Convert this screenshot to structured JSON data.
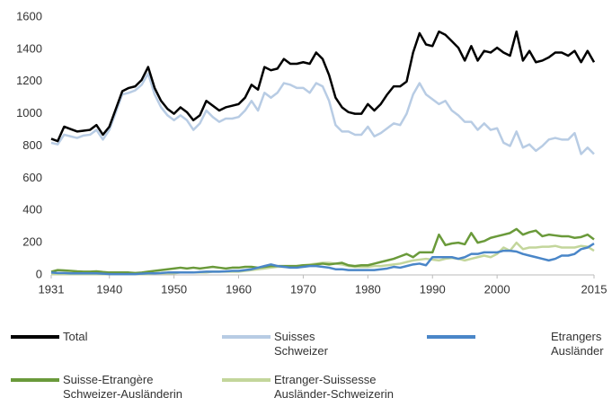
{
  "chart_data": {
    "type": "line",
    "xlim": [
      1931,
      2015
    ],
    "xticks": [
      1931,
      1940,
      1950,
      1960,
      1970,
      1980,
      1990,
      2000,
      2015
    ],
    "ylim": [
      0,
      1600
    ],
    "yticks": [
      0,
      200,
      400,
      600,
      800,
      1000,
      1200,
      1400,
      1600
    ],
    "grid": false,
    "x": [
      1931,
      1932,
      1933,
      1934,
      1935,
      1936,
      1937,
      1938,
      1939,
      1940,
      1941,
      1942,
      1943,
      1944,
      1945,
      1946,
      1947,
      1948,
      1949,
      1950,
      1951,
      1952,
      1953,
      1954,
      1955,
      1956,
      1957,
      1958,
      1959,
      1960,
      1961,
      1962,
      1963,
      1964,
      1965,
      1966,
      1967,
      1968,
      1969,
      1970,
      1971,
      1972,
      1973,
      1974,
      1975,
      1976,
      1977,
      1978,
      1979,
      1980,
      1981,
      1982,
      1983,
      1984,
      1985,
      1986,
      1987,
      1988,
      1989,
      1990,
      1991,
      1992,
      1993,
      1994,
      1995,
      1996,
      1997,
      1998,
      1999,
      2000,
      2001,
      2002,
      2003,
      2004,
      2005,
      2006,
      2007,
      2008,
      2009,
      2010,
      2011,
      2012,
      2013,
      2014,
      2015
    ],
    "series": [
      {
        "name": "Total",
        "color": "#000000",
        "values": [
          845,
          830,
          920,
          905,
          890,
          895,
          900,
          930,
          870,
          920,
          1030,
          1140,
          1160,
          1170,
          1210,
          1290,
          1160,
          1080,
          1030,
          1000,
          1040,
          1010,
          960,
          990,
          1080,
          1050,
          1020,
          1040,
          1050,
          1060,
          1100,
          1180,
          1150,
          1290,
          1270,
          1280,
          1340,
          1310,
          1310,
          1320,
          1310,
          1380,
          1340,
          1240,
          1100,
          1040,
          1010,
          1000,
          1000,
          1060,
          1020,
          1060,
          1120,
          1170,
          1170,
          1200,
          1380,
          1500,
          1430,
          1420,
          1510,
          1490,
          1450,
          1410,
          1330,
          1420,
          1330,
          1390,
          1380,
          1410,
          1380,
          1360,
          1510,
          1330,
          1390,
          1320,
          1330,
          1350,
          1380,
          1380,
          1360,
          1390,
          1320,
          1390,
          1320
        ]
      },
      {
        "name": "Suisses\nSchweizer",
        "color": "#b8cce4",
        "values": [
          820,
          810,
          870,
          860,
          850,
          865,
          870,
          900,
          840,
          900,
          1010,
          1120,
          1130,
          1145,
          1180,
          1250,
          1120,
          1040,
          990,
          960,
          990,
          960,
          900,
          940,
          1020,
          980,
          950,
          970,
          970,
          980,
          1020,
          1080,
          1020,
          1130,
          1100,
          1130,
          1190,
          1180,
          1160,
          1160,
          1130,
          1190,
          1170,
          1080,
          930,
          890,
          890,
          870,
          870,
          920,
          860,
          880,
          910,
          940,
          930,
          1000,
          1120,
          1190,
          1120,
          1090,
          1060,
          1080,
          1020,
          990,
          950,
          950,
          900,
          940,
          900,
          910,
          820,
          800,
          890,
          790,
          810,
          770,
          800,
          840,
          850,
          840,
          840,
          880,
          750,
          790,
          750
        ]
      },
      {
        "name": "Etrangers\nAusländer",
        "color": "#4a86c8",
        "values": [
          15,
          12,
          12,
          10,
          10,
          10,
          10,
          10,
          8,
          5,
          5,
          5,
          5,
          5,
          8,
          10,
          10,
          12,
          15,
          15,
          15,
          15,
          15,
          18,
          20,
          20,
          20,
          22,
          25,
          25,
          30,
          35,
          45,
          55,
          65,
          55,
          50,
          45,
          45,
          50,
          55,
          55,
          50,
          45,
          35,
          35,
          30,
          30,
          30,
          30,
          30,
          35,
          40,
          50,
          45,
          55,
          65,
          70,
          60,
          110,
          110,
          110,
          110,
          100,
          110,
          130,
          130,
          140,
          140,
          140,
          150,
          150,
          145,
          130,
          120,
          110,
          100,
          90,
          100,
          120,
          120,
          130,
          160,
          170,
          195
        ]
      },
      {
        "name": "Suisse-Etrangère\nSchweizer-Ausländerin",
        "color": "#6a9a3a",
        "values": [
          20,
          30,
          28,
          25,
          22,
          20,
          20,
          22,
          18,
          15,
          15,
          15,
          15,
          12,
          15,
          20,
          25,
          30,
          35,
          40,
          45,
          40,
          45,
          40,
          45,
          50,
          45,
          40,
          45,
          45,
          50,
          50,
          45,
          50,
          55,
          55,
          55,
          55,
          55,
          60,
          60,
          65,
          70,
          65,
          70,
          75,
          60,
          55,
          60,
          60,
          70,
          80,
          90,
          100,
          115,
          130,
          110,
          140,
          140,
          140,
          250,
          185,
          195,
          200,
          190,
          260,
          200,
          210,
          230,
          240,
          250,
          260,
          285,
          250,
          265,
          275,
          240,
          250,
          245,
          240,
          240,
          230,
          235,
          250,
          220
        ]
      },
      {
        "name": "Etranger-Suissesse\nAusländer-Schweizerin",
        "color": "#c3d69b",
        "values": [
          5,
          5,
          5,
          5,
          5,
          5,
          5,
          5,
          5,
          5,
          5,
          5,
          5,
          5,
          5,
          5,
          10,
          10,
          10,
          10,
          15,
          15,
          15,
          15,
          15,
          20,
          20,
          20,
          20,
          20,
          25,
          30,
          35,
          40,
          45,
          50,
          50,
          50,
          55,
          60,
          65,
          70,
          75,
          75,
          70,
          65,
          55,
          50,
          50,
          50,
          55,
          55,
          60,
          65,
          70,
          80,
          90,
          95,
          100,
          95,
          90,
          100,
          105,
          100,
          90,
          100,
          110,
          120,
          110,
          130,
          170,
          150,
          200,
          160,
          170,
          170,
          175,
          175,
          180,
          170,
          170,
          170,
          180,
          175,
          150
        ]
      }
    ]
  }
}
